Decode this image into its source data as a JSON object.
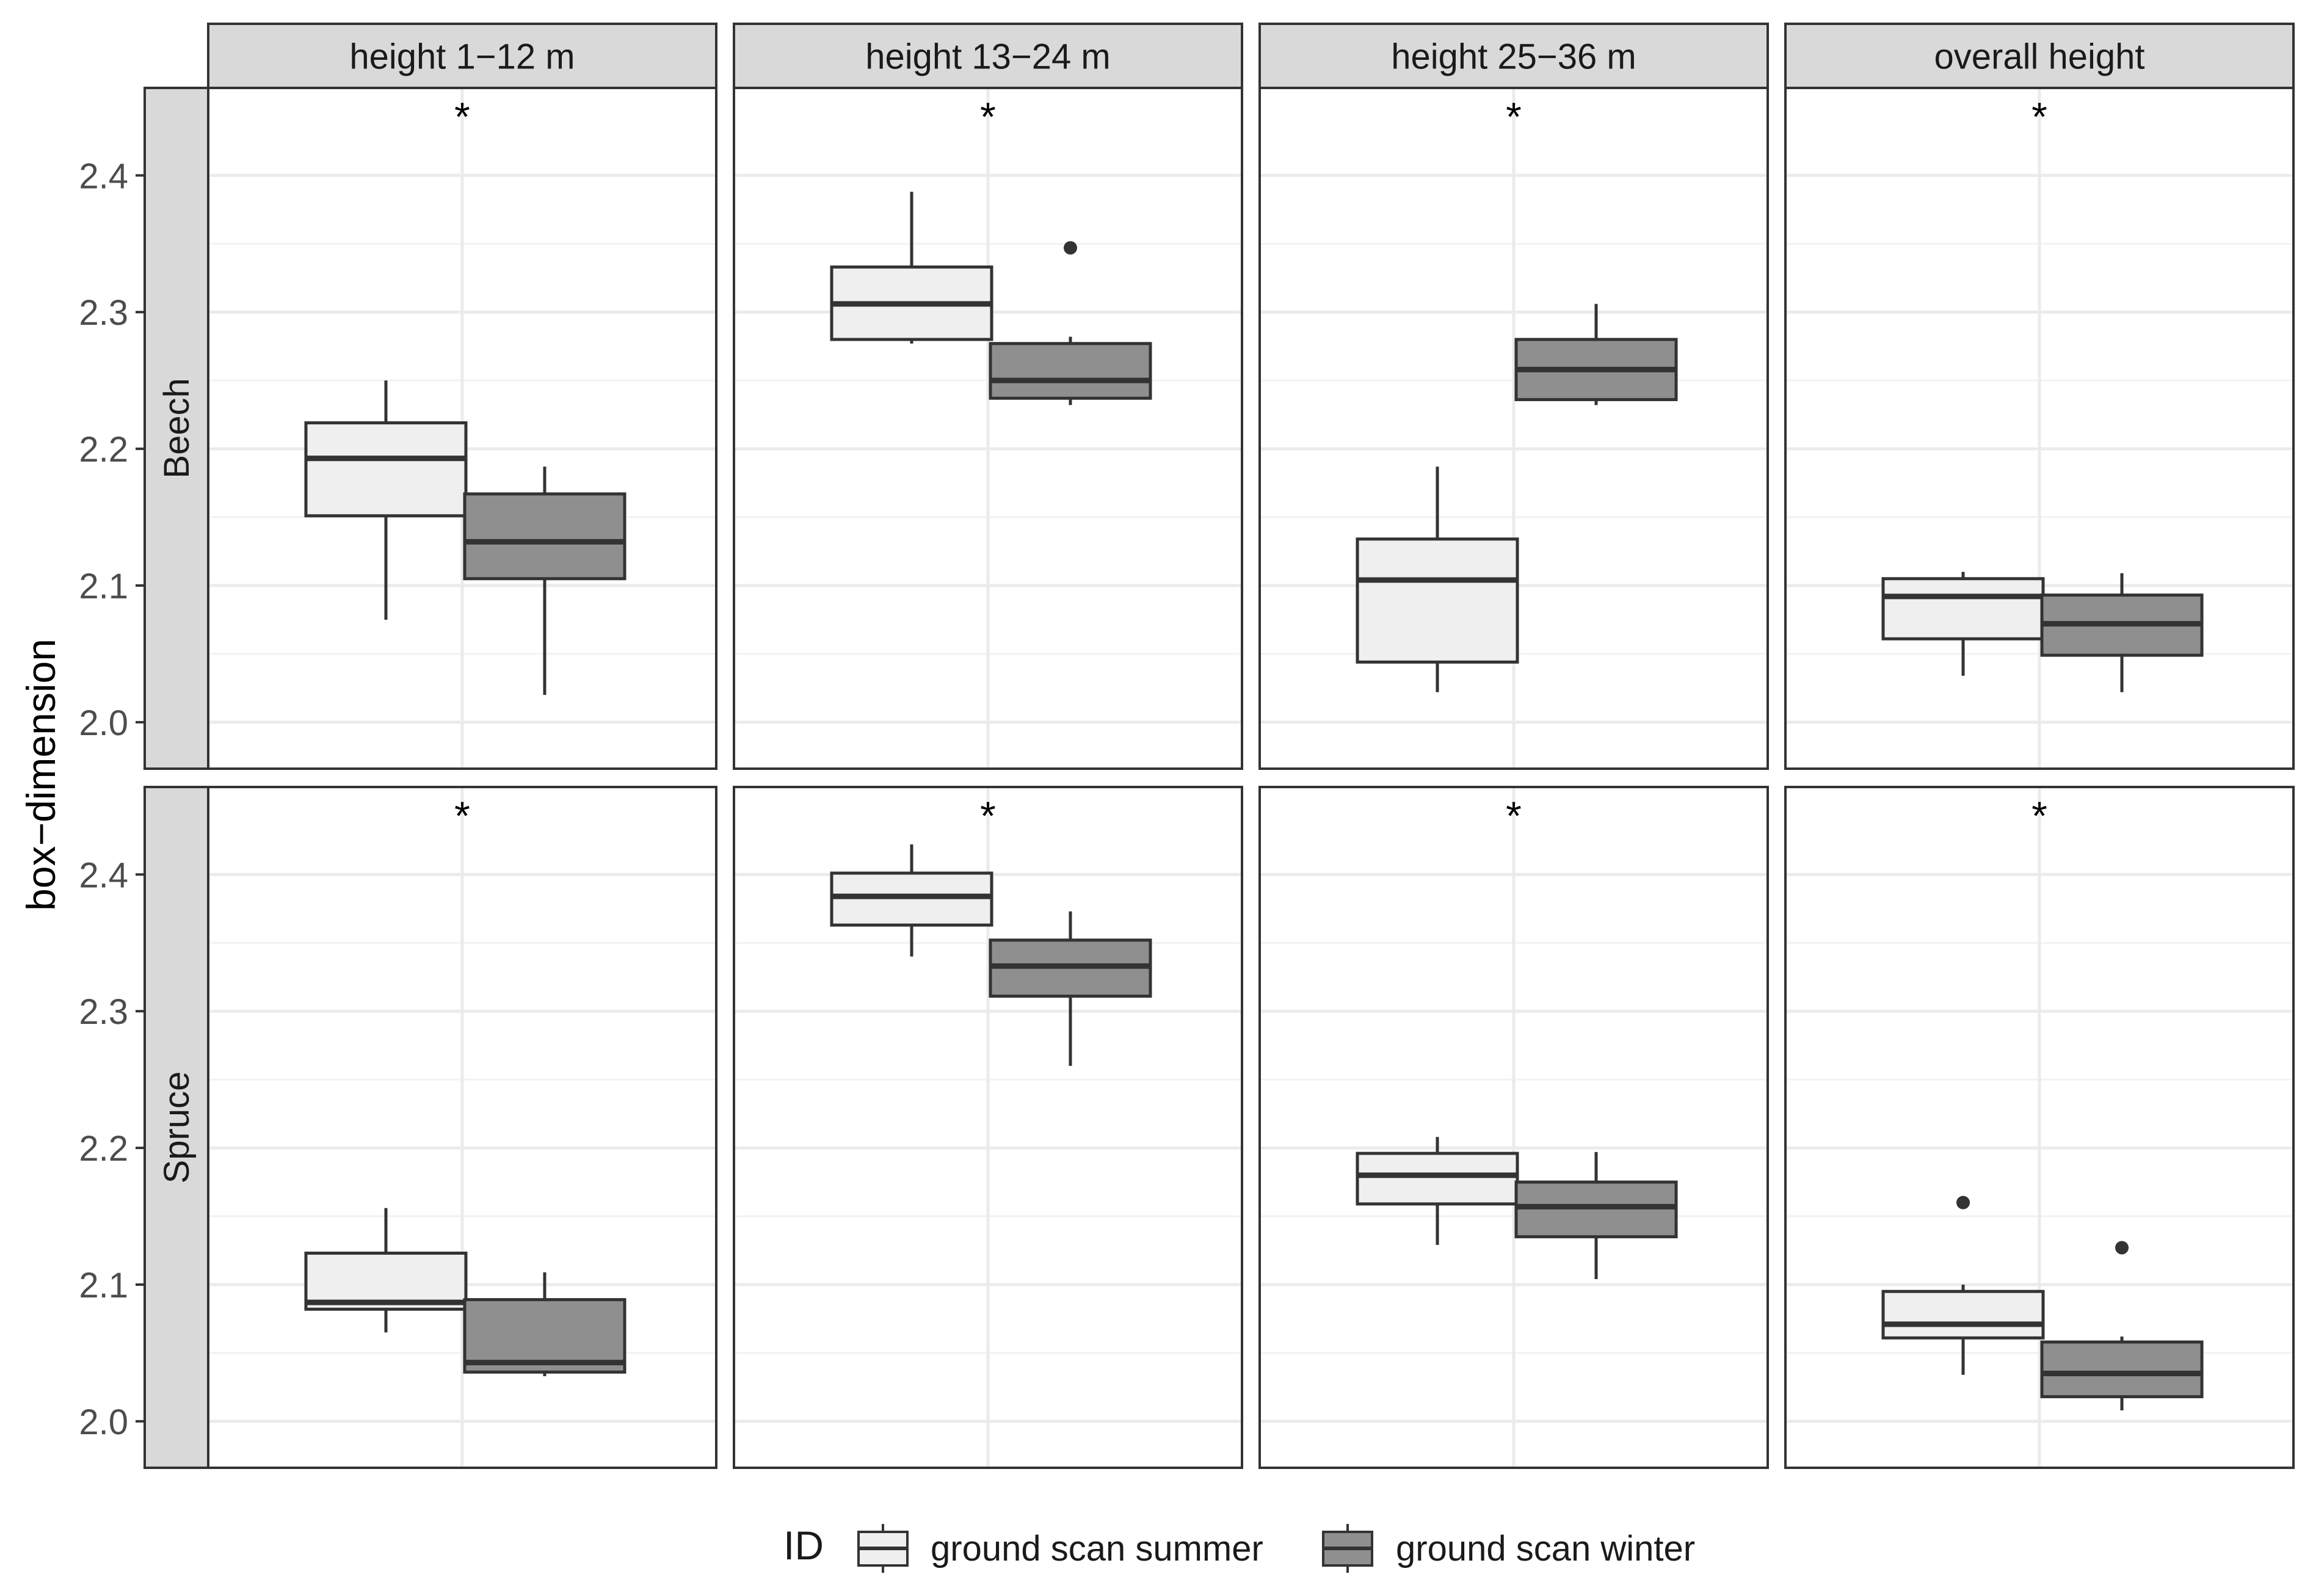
{
  "chart_data": {
    "type": "boxplot",
    "ylabel": "box−dimension",
    "ylim": [
      1.966,
      2.464
    ],
    "yticks": [
      2.0,
      2.1,
      2.2,
      2.3,
      2.4
    ],
    "ytick_labels": [
      "2.0",
      "2.1",
      "2.2",
      "2.3",
      "2.4"
    ],
    "columns": [
      "height 1−12 m",
      "height 13−24 m",
      "height 25−36 m",
      "overall height"
    ],
    "rows": [
      "Beech",
      "Spruce"
    ],
    "significance_marker": "*",
    "legend": {
      "title": "ID",
      "position": "bottom",
      "items": [
        {
          "name": "ground scan summer",
          "color": "#efefef"
        },
        {
          "name": "ground scan winter",
          "color": "#8f8f8f"
        }
      ]
    },
    "panels": [
      {
        "row": "Beech",
        "column": "height 1−12 m",
        "significance": "*",
        "boxes": [
          {
            "series": "ground scan summer",
            "min": 2.075,
            "q1": 2.151,
            "median": 2.193,
            "q3": 2.219,
            "max": 2.25,
            "outliers": []
          },
          {
            "series": "ground scan winter",
            "min": 2.02,
            "q1": 2.105,
            "median": 2.132,
            "q3": 2.167,
            "max": 2.187,
            "outliers": []
          }
        ]
      },
      {
        "row": "Beech",
        "column": "height 13−24 m",
        "significance": "*",
        "boxes": [
          {
            "series": "ground scan summer",
            "min": 2.277,
            "q1": 2.28,
            "median": 2.306,
            "q3": 2.333,
            "max": 2.388,
            "outliers": []
          },
          {
            "series": "ground scan winter",
            "min": 2.232,
            "q1": 2.237,
            "median": 2.25,
            "q3": 2.277,
            "max": 2.282,
            "outliers": [
              2.347
            ]
          }
        ]
      },
      {
        "row": "Beech",
        "column": "height 25−36 m",
        "significance": "*",
        "boxes": [
          {
            "series": "ground scan summer",
            "min": 2.022,
            "q1": 2.044,
            "median": 2.104,
            "q3": 2.134,
            "max": 2.187,
            "outliers": []
          },
          {
            "series": "ground scan winter",
            "min": 2.232,
            "q1": 2.236,
            "median": 2.258,
            "q3": 2.28,
            "max": 2.306,
            "outliers": []
          }
        ]
      },
      {
        "row": "Beech",
        "column": "overall height",
        "significance": "*",
        "boxes": [
          {
            "series": "ground scan summer",
            "min": 2.034,
            "q1": 2.061,
            "median": 2.092,
            "q3": 2.105,
            "max": 2.11,
            "outliers": []
          },
          {
            "series": "ground scan winter",
            "min": 2.022,
            "q1": 2.049,
            "median": 2.072,
            "q3": 2.093,
            "max": 2.109,
            "outliers": []
          }
        ]
      },
      {
        "row": "Spruce",
        "column": "height 1−12 m",
        "significance": "*",
        "boxes": [
          {
            "series": "ground scan summer",
            "min": 2.065,
            "q1": 2.082,
            "median": 2.087,
            "q3": 2.123,
            "max": 2.156,
            "outliers": []
          },
          {
            "series": "ground scan winter",
            "min": 2.033,
            "q1": 2.036,
            "median": 2.043,
            "q3": 2.089,
            "max": 2.109,
            "outliers": []
          }
        ]
      },
      {
        "row": "Spruce",
        "column": "height 13−24 m",
        "significance": "*",
        "boxes": [
          {
            "series": "ground scan summer",
            "min": 2.34,
            "q1": 2.363,
            "median": 2.384,
            "q3": 2.401,
            "max": 2.422,
            "outliers": []
          },
          {
            "series": "ground scan winter",
            "min": 2.26,
            "q1": 2.311,
            "median": 2.333,
            "q3": 2.352,
            "max": 2.373,
            "outliers": []
          }
        ]
      },
      {
        "row": "Spruce",
        "column": "height 25−36 m",
        "significance": "*",
        "boxes": [
          {
            "series": "ground scan summer",
            "min": 2.129,
            "q1": 2.159,
            "median": 2.18,
            "q3": 2.196,
            "max": 2.208,
            "outliers": []
          },
          {
            "series": "ground scan winter",
            "min": 2.104,
            "q1": 2.135,
            "median": 2.157,
            "q3": 2.175,
            "max": 2.197,
            "outliers": []
          }
        ]
      },
      {
        "row": "Spruce",
        "column": "overall height",
        "significance": "*",
        "boxes": [
          {
            "series": "ground scan summer",
            "min": 2.034,
            "q1": 2.061,
            "median": 2.071,
            "q3": 2.095,
            "max": 2.1,
            "outliers": [
              2.16
            ]
          },
          {
            "series": "ground scan winter",
            "min": 2.008,
            "q1": 2.018,
            "median": 2.035,
            "q3": 2.058,
            "max": 2.062,
            "outliers": [
              2.127
            ]
          }
        ]
      }
    ]
  }
}
